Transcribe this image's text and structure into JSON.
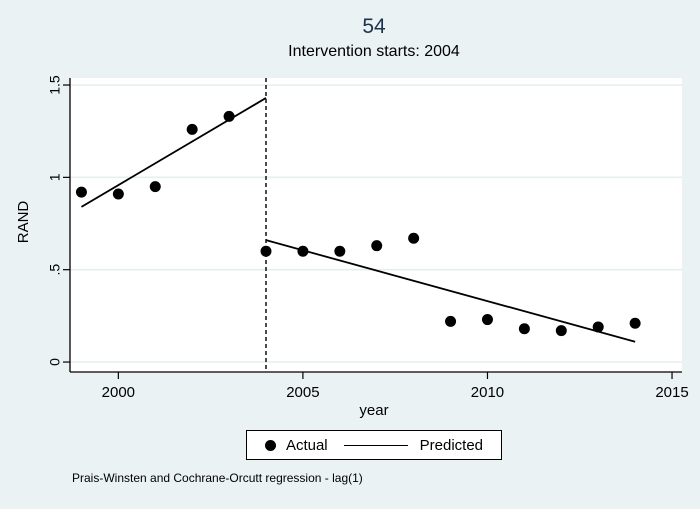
{
  "figure": {
    "title": "54",
    "subtitle": "Intervention starts: 2004",
    "caption": "Prais-Winsten and Cochrane-Orcutt regression - lag(1)"
  },
  "legend": {
    "actual_label": "Actual",
    "predicted_label": "Predicted"
  },
  "colors": {
    "background": "#eaf2f3",
    "plot_background": "#ffffff",
    "gridline": "#e6eff0",
    "axis": "#000000",
    "marker": "#000000",
    "line": "#000000",
    "title_color": "#1e3150"
  },
  "chart_data": {
    "type": "scatter",
    "title": "54",
    "subtitle": "Intervention starts: 2004",
    "xlabel": "year",
    "ylabel": "RAND",
    "x_ticks": [
      2000,
      2005,
      2010,
      2015
    ],
    "y_ticks": [
      0,
      0.5,
      1,
      1.5
    ],
    "y_tick_labels": [
      "0",
      ".5",
      "1",
      "1.5"
    ],
    "xlim": [
      1998.69,
      2015.27
    ],
    "ylim": [
      -0.054,
      1.538
    ],
    "grid": "horizontal-only",
    "legend_position": "bottom-center",
    "intervention_year": 2004,
    "series": [
      {
        "name": "Actual",
        "type": "scatter",
        "x": [
          1999,
          2000,
          2001,
          2002,
          2003,
          2004,
          2005,
          2006,
          2007,
          2008,
          2009,
          2010,
          2011,
          2012,
          2013,
          2014
        ],
        "y": [
          0.92,
          0.91,
          0.95,
          1.26,
          1.33,
          0.6,
          0.6,
          0.6,
          0.63,
          0.67,
          0.22,
          0.23,
          0.18,
          0.17,
          0.19,
          0.21
        ]
      },
      {
        "name": "Predicted",
        "type": "line",
        "segments": [
          {
            "x": [
              1999,
              2004
            ],
            "y": [
              0.84,
              1.43
            ]
          },
          {
            "x": [
              2004,
              2014
            ],
            "y": [
              0.66,
              0.11
            ]
          }
        ]
      }
    ],
    "annotations": [
      {
        "type": "vline",
        "x": 2004,
        "style": "dashed"
      }
    ]
  }
}
